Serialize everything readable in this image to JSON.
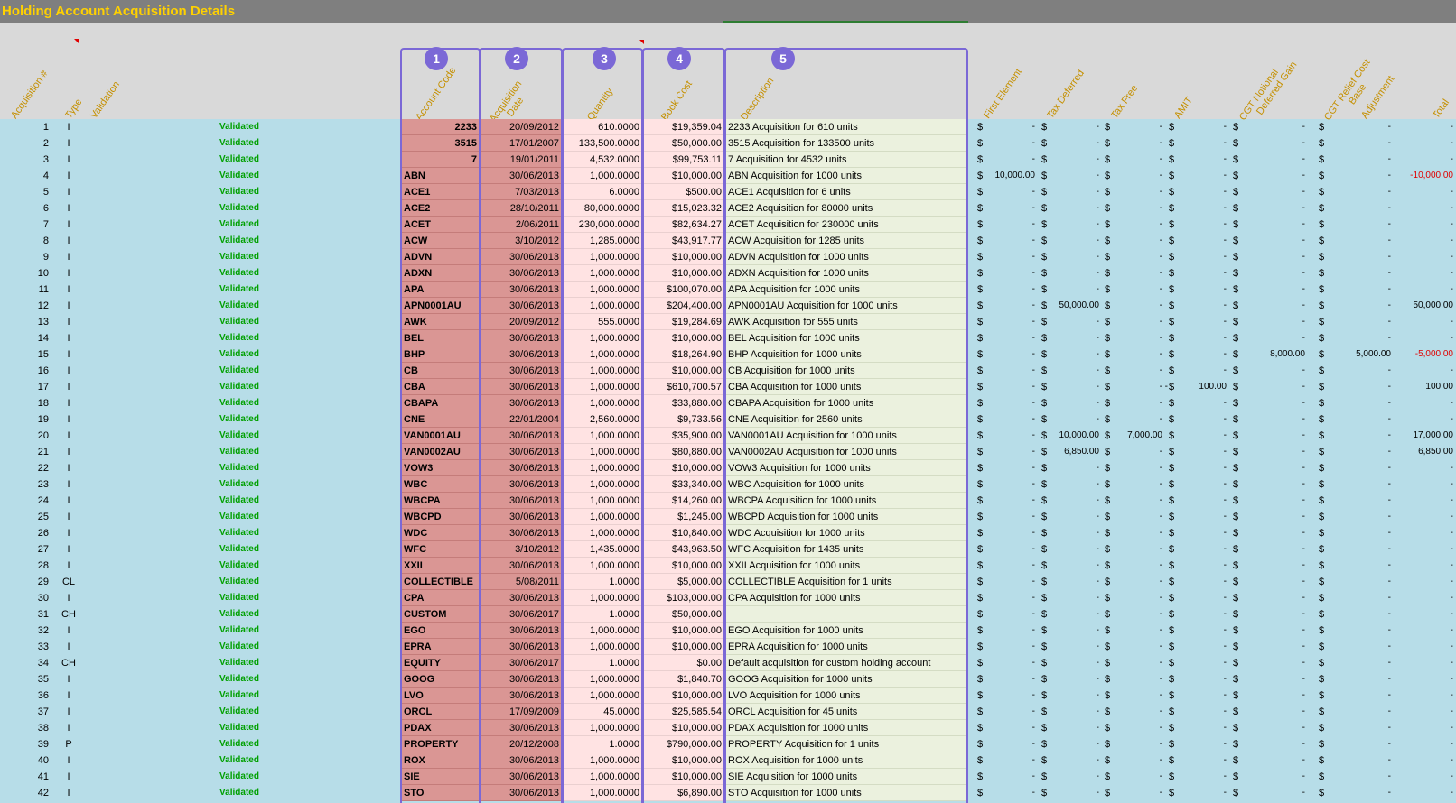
{
  "title": "Holding Account Acquisition Details",
  "headers": {
    "acq_num": "Acquisition #",
    "type": "Type",
    "validation": "Validation",
    "account_code": "Account Code",
    "acq_date_1": "Acquisition",
    "acq_date_2": "Date",
    "quantity": "Quantity",
    "book_cost": "Book Cost",
    "description": "Description",
    "first_element": "First Element",
    "tax_deferred": "Tax Deferred",
    "tax_free": "Tax Free",
    "amit": "AMIT",
    "cgt_notional_1": "CGT Notional",
    "cgt_notional_2": "Deferred Gain",
    "cgt_relief_1": "CGT Relief Cost",
    "cgt_relief_2": "Base",
    "adjustment": "Adjustment",
    "total": "Total"
  },
  "badges": [
    "1",
    "2",
    "3",
    "4",
    "5"
  ],
  "currency_symbol": "$",
  "dash": "-",
  "rows": [
    {
      "n": "1",
      "t": "I",
      "v": "Validated",
      "code": "2233",
      "date": "20/09/2012",
      "qty": "610.0000",
      "cost": "$19,359.04",
      "desc": "2233 Acquisition for 610 units"
    },
    {
      "n": "2",
      "t": "I",
      "v": "Validated",
      "code": "3515",
      "date": "17/01/2007",
      "qty": "133,500.0000",
      "cost": "$50,000.00",
      "desc": "3515 Acquisition for 133500 units"
    },
    {
      "n": "3",
      "t": "I",
      "v": "Validated",
      "code": "7",
      "date": "19/01/2011",
      "qty": "4,532.0000",
      "cost": "$99,753.11",
      "desc": "7 Acquisition for 4532 units"
    },
    {
      "n": "4",
      "t": "I",
      "v": "Validated",
      "code": "ABN",
      "date": "30/06/2013",
      "qty": "1,000.0000",
      "cost": "$10,000.00",
      "desc": "ABN Acquisition for 1000 units",
      "first": "10,000.00",
      "total": "-10,000.00",
      "totalNeg": true
    },
    {
      "n": "5",
      "t": "I",
      "v": "Validated",
      "code": "ACE1",
      "date": "7/03/2013",
      "qty": "6.0000",
      "cost": "$500.00",
      "desc": "ACE1 Acquisition for 6 units"
    },
    {
      "n": "6",
      "t": "I",
      "v": "Validated",
      "code": "ACE2",
      "date": "28/10/2011",
      "qty": "80,000.0000",
      "cost": "$15,023.32",
      "desc": "ACE2 Acquisition for 80000 units"
    },
    {
      "n": "7",
      "t": "I",
      "v": "Validated",
      "code": "ACET",
      "date": "2/06/2011",
      "qty": "230,000.0000",
      "cost": "$82,634.27",
      "desc": "ACET Acquisition for 230000 units"
    },
    {
      "n": "8",
      "t": "I",
      "v": "Validated",
      "code": "ACW",
      "date": "3/10/2012",
      "qty": "1,285.0000",
      "cost": "$43,917.77",
      "desc": "ACW Acquisition for 1285 units"
    },
    {
      "n": "9",
      "t": "I",
      "v": "Validated",
      "code": "ADVN",
      "date": "30/06/2013",
      "qty": "1,000.0000",
      "cost": "$10,000.00",
      "desc": "ADVN Acquisition for 1000 units"
    },
    {
      "n": "10",
      "t": "I",
      "v": "Validated",
      "code": "ADXN",
      "date": "30/06/2013",
      "qty": "1,000.0000",
      "cost": "$10,000.00",
      "desc": "ADXN Acquisition for 1000 units"
    },
    {
      "n": "11",
      "t": "I",
      "v": "Validated",
      "code": "APA",
      "date": "30/06/2013",
      "qty": "1,000.0000",
      "cost": "$100,070.00",
      "desc": "APA Acquisition for 1000 units"
    },
    {
      "n": "12",
      "t": "I",
      "v": "Validated",
      "code": "APN0001AU",
      "date": "30/06/2013",
      "qty": "1,000.0000",
      "cost": "$204,400.00",
      "desc": "APN0001AU Acquisition for 1000 units",
      "taxdef": "50,000.00",
      "total": "50,000.00"
    },
    {
      "n": "13",
      "t": "I",
      "v": "Validated",
      "code": "AWK",
      "date": "20/09/2012",
      "qty": "555.0000",
      "cost": "$19,284.69",
      "desc": "AWK Acquisition for 555 units"
    },
    {
      "n": "14",
      "t": "I",
      "v": "Validated",
      "code": "BEL",
      "date": "30/06/2013",
      "qty": "1,000.0000",
      "cost": "$10,000.00",
      "desc": "BEL Acquisition for 1000 units"
    },
    {
      "n": "15",
      "t": "I",
      "v": "Validated",
      "code": "BHP",
      "date": "30/06/2013",
      "qty": "1,000.0000",
      "cost": "$18,264.90",
      "desc": "BHP Acquisition for 1000 units",
      "cgtn": "8,000.00",
      "cgtr": "5,000.00",
      "total": "-5,000.00",
      "totalNeg": true
    },
    {
      "n": "16",
      "t": "I",
      "v": "Validated",
      "code": "CB",
      "date": "30/06/2013",
      "qty": "1,000.0000",
      "cost": "$10,000.00",
      "desc": "CB Acquisition for 1000 units"
    },
    {
      "n": "17",
      "t": "I",
      "v": "Validated",
      "code": "CBA",
      "date": "30/06/2013",
      "qty": "1,000.0000",
      "cost": "$610,700.57",
      "desc": "CBA Acquisition for 1000 units",
      "amit": "100.00",
      "amitNeg": true,
      "total": "100.00"
    },
    {
      "n": "18",
      "t": "I",
      "v": "Validated",
      "code": "CBAPA",
      "date": "30/06/2013",
      "qty": "1,000.0000",
      "cost": "$33,880.00",
      "desc": "CBAPA Acquisition for 1000 units"
    },
    {
      "n": "19",
      "t": "I",
      "v": "Validated",
      "code": "CNE",
      "date": "22/01/2004",
      "qty": "2,560.0000",
      "cost": "$9,733.56",
      "desc": "CNE Acquisition for 2560 units"
    },
    {
      "n": "20",
      "t": "I",
      "v": "Validated",
      "code": "VAN0001AU",
      "date": "30/06/2013",
      "qty": "1,000.0000",
      "cost": "$35,900.00",
      "desc": "VAN0001AU Acquisition for 1000 units",
      "taxdef": "10,000.00",
      "taxfree": "7,000.00",
      "total": "17,000.00"
    },
    {
      "n": "21",
      "t": "I",
      "v": "Validated",
      "code": "VAN0002AU",
      "date": "30/06/2013",
      "qty": "1,000.0000",
      "cost": "$80,880.00",
      "desc": "VAN0002AU Acquisition for 1000 units",
      "taxdef": "6,850.00",
      "total": "6,850.00"
    },
    {
      "n": "22",
      "t": "I",
      "v": "Validated",
      "code": "VOW3",
      "date": "30/06/2013",
      "qty": "1,000.0000",
      "cost": "$10,000.00",
      "desc": "VOW3 Acquisition for 1000 units"
    },
    {
      "n": "23",
      "t": "I",
      "v": "Validated",
      "code": "WBC",
      "date": "30/06/2013",
      "qty": "1,000.0000",
      "cost": "$33,340.00",
      "desc": "WBC Acquisition for 1000 units"
    },
    {
      "n": "24",
      "t": "I",
      "v": "Validated",
      "code": "WBCPA",
      "date": "30/06/2013",
      "qty": "1,000.0000",
      "cost": "$14,260.00",
      "desc": "WBCPA Acquisition for 1000 units"
    },
    {
      "n": "25",
      "t": "I",
      "v": "Validated",
      "code": "WBCPD",
      "date": "30/06/2013",
      "qty": "1,000.0000",
      "cost": "$1,245.00",
      "desc": "WBCPD Acquisition for 1000 units"
    },
    {
      "n": "26",
      "t": "I",
      "v": "Validated",
      "code": "WDC",
      "date": "30/06/2013",
      "qty": "1,000.0000",
      "cost": "$10,840.00",
      "desc": "WDC Acquisition for 1000 units"
    },
    {
      "n": "27",
      "t": "I",
      "v": "Validated",
      "code": "WFC",
      "date": "3/10/2012",
      "qty": "1,435.0000",
      "cost": "$43,963.50",
      "desc": "WFC Acquisition for 1435 units"
    },
    {
      "n": "28",
      "t": "I",
      "v": "Validated",
      "code": "XXII",
      "date": "30/06/2013",
      "qty": "1,000.0000",
      "cost": "$10,000.00",
      "desc": "XXII Acquisition for 1000 units"
    },
    {
      "n": "29",
      "t": "CL",
      "v": "Validated",
      "code": "COLLECTIBLE",
      "date": "5/08/2011",
      "qty": "1.0000",
      "cost": "$5,000.00",
      "desc": "COLLECTIBLE Acquisition for 1 units"
    },
    {
      "n": "30",
      "t": "I",
      "v": "Validated",
      "code": "CPA",
      "date": "30/06/2013",
      "qty": "1,000.0000",
      "cost": "$103,000.00",
      "desc": "CPA Acquisition for 1000 units"
    },
    {
      "n": "31",
      "t": "CH",
      "v": "Validated",
      "code": "CUSTOM",
      "date": "30/06/2017",
      "qty": "1.0000",
      "cost": "$50,000.00",
      "desc": ""
    },
    {
      "n": "32",
      "t": "I",
      "v": "Validated",
      "code": "EGO",
      "date": "30/06/2013",
      "qty": "1,000.0000",
      "cost": "$10,000.00",
      "desc": "EGO Acquisition for 1000 units"
    },
    {
      "n": "33",
      "t": "I",
      "v": "Validated",
      "code": "EPRA",
      "date": "30/06/2013",
      "qty": "1,000.0000",
      "cost": "$10,000.00",
      "desc": "EPRA Acquisition for 1000 units"
    },
    {
      "n": "34",
      "t": "CH",
      "v": "Validated",
      "code": "EQUITY",
      "date": "30/06/2017",
      "qty": "1.0000",
      "cost": "$0.00",
      "desc": "Default acquisition for custom holding account"
    },
    {
      "n": "35",
      "t": "I",
      "v": "Validated",
      "code": "GOOG",
      "date": "30/06/2013",
      "qty": "1,000.0000",
      "cost": "$1,840.70",
      "desc": "GOOG Acquisition for 1000 units"
    },
    {
      "n": "36",
      "t": "I",
      "v": "Validated",
      "code": "LVO",
      "date": "30/06/2013",
      "qty": "1,000.0000",
      "cost": "$10,000.00",
      "desc": "LVO Acquisition for 1000 units"
    },
    {
      "n": "37",
      "t": "I",
      "v": "Validated",
      "code": "ORCL",
      "date": "17/09/2009",
      "qty": "45.0000",
      "cost": "$25,585.54",
      "desc": "ORCL Acquisition for 45 units"
    },
    {
      "n": "38",
      "t": "I",
      "v": "Validated",
      "code": "PDAX",
      "date": "30/06/2013",
      "qty": "1,000.0000",
      "cost": "$10,000.00",
      "desc": "PDAX Acquisition for 1000 units"
    },
    {
      "n": "39",
      "t": "P",
      "v": "Validated",
      "code": "PROPERTY",
      "date": "20/12/2008",
      "qty": "1.0000",
      "cost": "$790,000.00",
      "desc": "PROPERTY Acquisition for 1 units"
    },
    {
      "n": "40",
      "t": "I",
      "v": "Validated",
      "code": "ROX",
      "date": "30/06/2013",
      "qty": "1,000.0000",
      "cost": "$10,000.00",
      "desc": "ROX Acquisition for 1000 units"
    },
    {
      "n": "41",
      "t": "I",
      "v": "Validated",
      "code": "SIE",
      "date": "30/06/2013",
      "qty": "1,000.0000",
      "cost": "$10,000.00",
      "desc": "SIE Acquisition for 1000 units"
    },
    {
      "n": "42",
      "t": "I",
      "v": "Validated",
      "code": "STO",
      "date": "30/06/2013",
      "qty": "1,000.0000",
      "cost": "$6,890.00",
      "desc": "STO Acquisition for 1000 units"
    }
  ]
}
